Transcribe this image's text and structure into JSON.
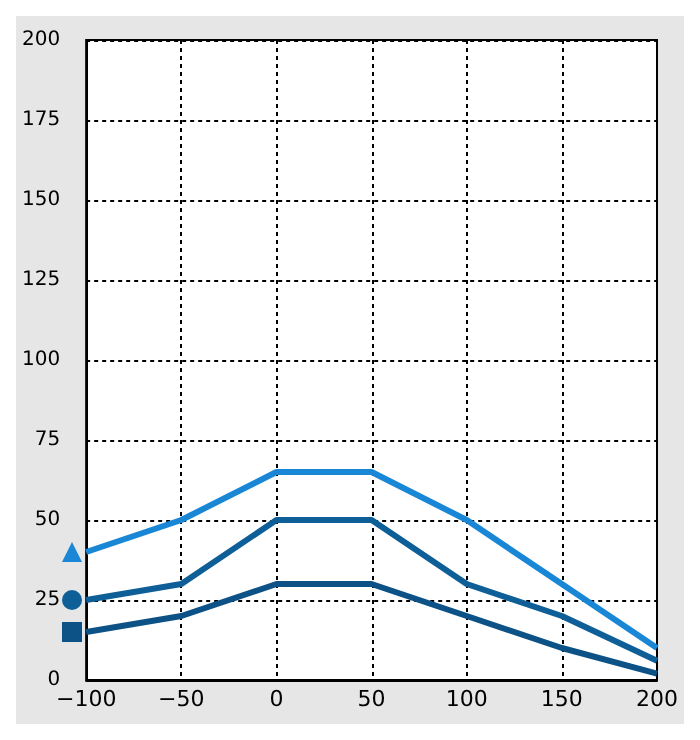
{
  "chart_data": {
    "type": "line",
    "x": [
      -100,
      -50,
      0,
      50,
      100,
      150,
      200
    ],
    "series": [
      {
        "color": "#1a87d6",
        "values": [
          40,
          50,
          65,
          65,
          50,
          30,
          10
        ]
      },
      {
        "color": "#0e5f98",
        "values": [
          25,
          30,
          50,
          50,
          30,
          20,
          6
        ]
      },
      {
        "color": "#0d5286",
        "values": [
          15,
          20,
          30,
          30,
          20,
          10,
          2
        ]
      }
    ],
    "xlim": [
      -100,
      200
    ],
    "xticks": [
      -100,
      -50,
      0,
      50,
      100,
      150,
      200
    ],
    "ylim": [
      0,
      200
    ],
    "yticks": [
      0,
      25,
      50,
      75,
      100,
      125,
      150,
      175,
      200
    ],
    "grid": true
  }
}
